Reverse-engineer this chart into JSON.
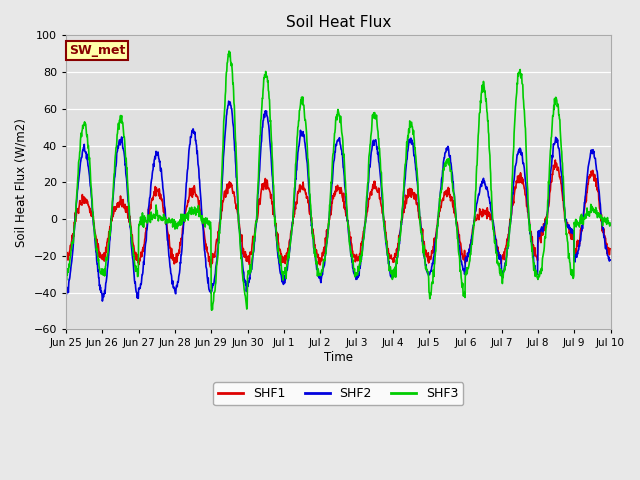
{
  "title": "Soil Heat Flux",
  "ylabel": "Soil Heat Flux (W/m2)",
  "xlabel": "Time",
  "ylim": [
    -60,
    100
  ],
  "yticks": [
    -60,
    -40,
    -20,
    0,
    20,
    40,
    60,
    80,
    100
  ],
  "background_color": "#e8e8e8",
  "plot_bg_color": "#e0e0e0",
  "line_colors": {
    "SHF1": "#dd0000",
    "SHF2": "#0000dd",
    "SHF3": "#00cc00"
  },
  "line_width": 1.2,
  "legend_box_label": "SW_met",
  "legend_box_bg": "#ffffaa",
  "legend_box_border": "#880000",
  "xtick_labels": [
    "Jun 25",
    "Jun 26",
    "Jun 27",
    "Jun 28",
    "Jun 29",
    "Jun 30",
    "Jul 1",
    "Jul 2",
    "Jul 3",
    "Jul 4",
    "Jul 5",
    "Jul 6",
    "Jul 7",
    "Jul 8",
    "Jul 9",
    "Jul 10"
  ],
  "figsize": [
    6.4,
    4.8
  ],
  "dpi": 100
}
